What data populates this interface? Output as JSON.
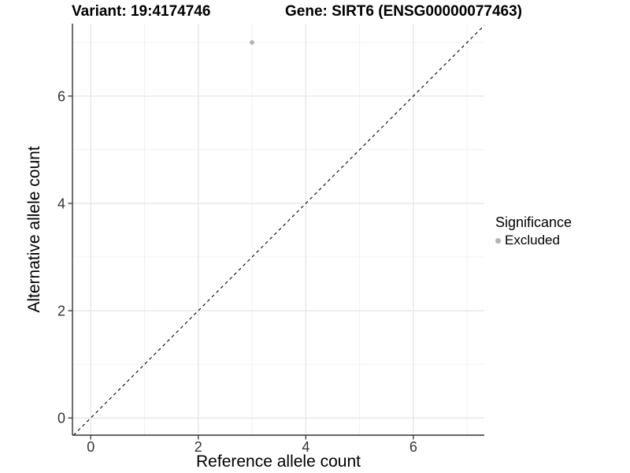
{
  "chart_data": {
    "type": "scatter",
    "title_left": "Variant: 19:4174746",
    "title_right": "Gene: SIRT6 (ENSG00000077463)",
    "xlabel": "Reference allele count",
    "ylabel": "Alternative allele count",
    "xlim": [
      -0.34,
      7.32
    ],
    "ylim": [
      -0.32,
      7.35
    ],
    "xticks": [
      0,
      2,
      4,
      6
    ],
    "yticks": [
      0,
      2,
      4,
      6
    ],
    "xticks_minor": [
      1,
      3,
      5,
      7
    ],
    "yticks_minor": [
      1,
      3,
      5,
      7
    ],
    "grid": "major+minor",
    "points": [
      {
        "x": 3,
        "y": 7,
        "significance": "Excluded"
      }
    ],
    "identity_line": {
      "slope": 1,
      "intercept": 0,
      "style": "dashed"
    },
    "legend": {
      "title": "Significance",
      "position": "right",
      "items": [
        {
          "label": "Excluded",
          "color": "#b3b3b3"
        }
      ]
    },
    "colors": {
      "point_excluded": "#b3b3b3",
      "grid_major": "#e3e3e3",
      "grid_minor": "#f0f0f0",
      "axis_line": "#333333",
      "tick_mark": "#333333",
      "tick_text": "#333333",
      "identity_line": "#000000",
      "background": "#ffffff"
    }
  }
}
